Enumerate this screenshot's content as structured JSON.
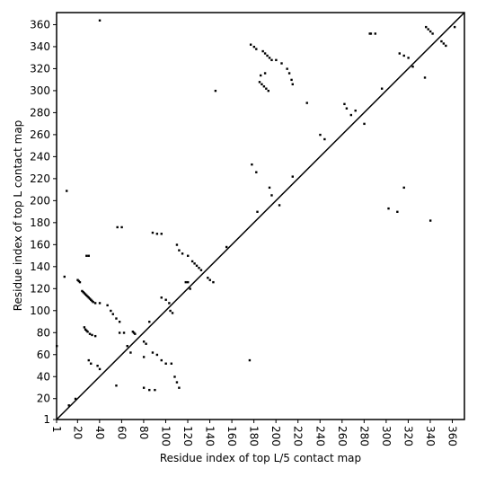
{
  "chart_data": {
    "type": "scatter",
    "xlabel": "Residue index of top L/5 contact map",
    "ylabel": "Residue index of top L contact map",
    "xlim": [
      1,
      371
    ],
    "ylim": [
      1,
      371
    ],
    "xticks": [
      1,
      20,
      40,
      60,
      80,
      100,
      120,
      140,
      160,
      180,
      200,
      220,
      240,
      260,
      280,
      300,
      320,
      340,
      360
    ],
    "yticks": [
      1,
      20,
      40,
      60,
      80,
      100,
      120,
      140,
      160,
      180,
      200,
      220,
      240,
      260,
      280,
      300,
      320,
      340,
      360
    ],
    "color": "#000000",
    "x": [
      40,
      10,
      8,
      20,
      21,
      22,
      24,
      25,
      26,
      27,
      28,
      29,
      30,
      31,
      32,
      33,
      34,
      36,
      40,
      28,
      30,
      47,
      50,
      52,
      55,
      58,
      26,
      27,
      28,
      29,
      31,
      33,
      36,
      56,
      60,
      58,
      62,
      70,
      71,
      72,
      88,
      92,
      96,
      96,
      100,
      103,
      104,
      106,
      110,
      112,
      115,
      120,
      118,
      120,
      122,
      124,
      126,
      128,
      130,
      132,
      138,
      140,
      143,
      145,
      177,
      180,
      182,
      188,
      190,
      192,
      194,
      196,
      185,
      187,
      189,
      191,
      193,
      186,
      190,
      200,
      205,
      210,
      212,
      214,
      215,
      178,
      182,
      194,
      196,
      203,
      215,
      228,
      240,
      244,
      262,
      264,
      268,
      272,
      285,
      290,
      296,
      312,
      316,
      320,
      324,
      336,
      338,
      340,
      342,
      350,
      352,
      354,
      362,
      1,
      12,
      18,
      30,
      32,
      38,
      40,
      55,
      65,
      68,
      80,
      82,
      85,
      80,
      80,
      85,
      90,
      88,
      92,
      96,
      100,
      105,
      108,
      110,
      112,
      176,
      155,
      183,
      302,
      310,
      316,
      335,
      340,
      280,
      286
    ],
    "values": [
      364,
      209,
      131,
      128,
      127,
      126,
      118,
      117,
      116,
      115,
      114,
      113,
      112,
      111,
      110,
      109,
      108,
      107,
      107,
      150,
      150,
      105,
      100,
      97,
      93,
      90,
      85,
      83,
      82,
      81,
      79,
      78,
      77,
      176,
      176,
      80,
      80,
      81,
      80,
      79,
      171,
      170,
      170,
      112,
      110,
      107,
      100,
      98,
      160,
      155,
      152,
      150,
      126,
      126,
      120,
      145,
      143,
      141,
      139,
      137,
      130,
      128,
      126,
      300,
      342,
      340,
      338,
      336,
      334,
      332,
      330,
      328,
      308,
      306,
      304,
      302,
      300,
      314,
      316,
      328,
      325,
      320,
      316,
      310,
      306,
      233,
      226,
      212,
      205,
      196,
      222,
      289,
      260,
      256,
      288,
      284,
      278,
      282,
      352,
      352,
      302,
      334,
      332,
      330,
      322,
      358,
      356,
      354,
      352,
      345,
      343,
      341,
      358,
      68,
      14,
      20,
      55,
      52,
      50,
      47,
      32,
      68,
      62,
      72,
      70,
      90,
      58,
      30,
      28,
      28,
      62,
      60,
      55,
      52,
      52,
      40,
      35,
      30,
      55,
      158,
      190,
      193,
      190,
      212,
      312,
      182,
      270,
      352
    ]
  }
}
